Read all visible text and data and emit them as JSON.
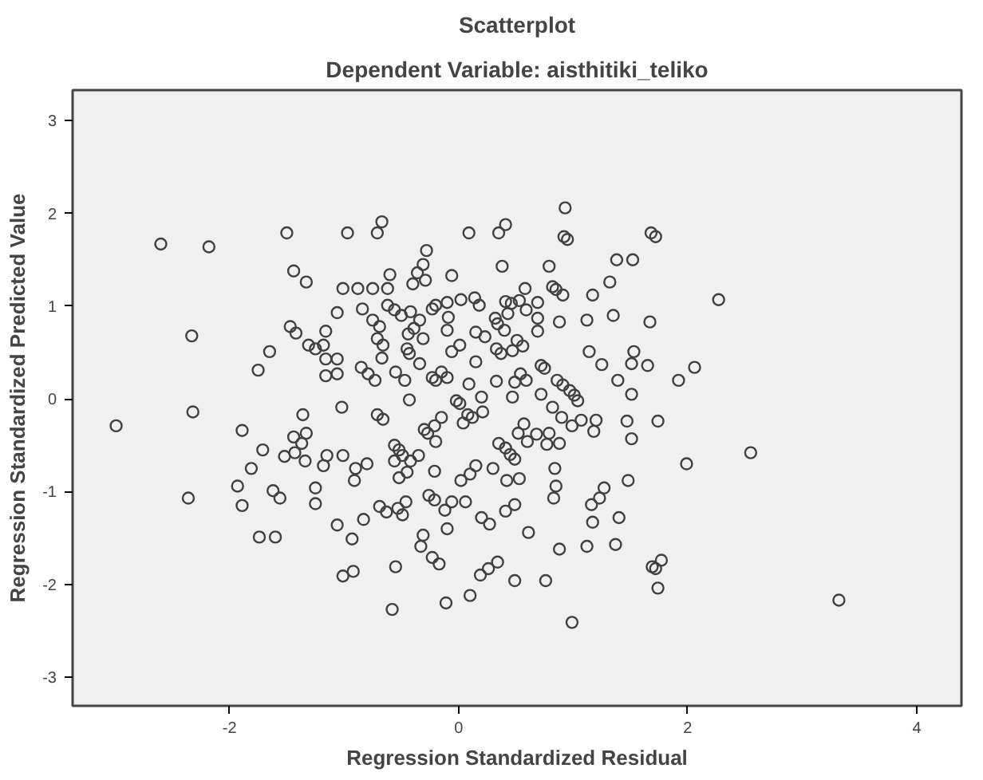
{
  "chart_data": {
    "type": "scatter",
    "title": "Scatterplot",
    "subtitle": "Dependent Variable: aisthitiki_teliko",
    "xlabel": "Regression Standardized Residual",
    "ylabel": "Regression Standardized Predicted Value",
    "marker": "circle",
    "grid": false,
    "xlim": [
      -3.37,
      4.39
    ],
    "ylim": [
      -3.31,
      3.33
    ],
    "xticks": [
      -2,
      0,
      2,
      4
    ],
    "yticks": [
      -3,
      -2,
      -1,
      0,
      1,
      2,
      3
    ],
    "series": [
      {
        "color": "#404040",
        "x": [
          -2.6,
          -2.18,
          -1.5,
          -0.97,
          -0.71,
          -0.67,
          0.09,
          0.35,
          0.41,
          0.93,
          0.92,
          0.95,
          1.68,
          1.72,
          -1.44,
          -1.33,
          -0.28,
          -0.31,
          -0.36,
          -0.29,
          -0.4,
          -0.6,
          -0.62,
          -0.06,
          0.38,
          0.79,
          1.38,
          1.52,
          1.32,
          1.17,
          0.82,
          0.85,
          0.91,
          0.58,
          -1.01,
          -0.88,
          -0.75,
          2.27,
          0.02,
          0.14,
          0.18,
          -0.2,
          -0.23,
          -0.1,
          0.41,
          0.46,
          0.53,
          0.69,
          0.59,
          -1.06,
          -0.84,
          -0.62,
          -0.56,
          -0.5,
          -0.42,
          -0.34,
          -0.09,
          0.43,
          0.32,
          0.69,
          1.35,
          1.12,
          1.67,
          0.88,
          -1.47,
          -1.42,
          -1.16,
          -0.75,
          -0.69,
          -0.71,
          -0.66,
          -2.33,
          -1.65,
          -1.75,
          -1.31,
          -1.25,
          -1.18,
          -1.16,
          -1.06,
          -1.06,
          -1.16,
          -0.67,
          -0.85,
          -0.79,
          -0.73,
          -0.55,
          -0.47,
          -0.44,
          -0.39,
          -0.31,
          -0.45,
          -0.43,
          -0.34,
          -0.1,
          0.01,
          -0.06,
          0.15,
          0.23,
          0.34,
          0.4,
          0.33,
          0.37,
          0.47,
          0.51,
          0.56,
          0.69,
          0.15,
          -0.15,
          -0.23,
          -0.2,
          -0.1,
          0.09,
          0.33,
          0.49,
          0.54,
          0.59,
          0.72,
          0.75,
          0.86,
          0.91,
          0.97,
          1.01,
          1.04,
          1.14,
          1.25,
          1.39,
          1.51,
          1.53,
          1.65,
          2.06,
          1.92,
          1.51,
          0.72,
          0.47,
          0.2,
          -0.43,
          -0.02,
          0.01,
          -1.02,
          -2.99,
          -2.32,
          -1.36,
          -1.89,
          -1.44,
          -1.33,
          -1.37,
          -1.43,
          -1.52,
          -1.34,
          -1.71,
          -1.15,
          -1.01,
          -1.18,
          -1.81,
          -1.93,
          -1.62,
          -1.56,
          -1.89,
          -2.36,
          -1.25,
          -1.25,
          -0.9,
          -0.8,
          -0.91,
          -0.83,
          -1.06,
          -1.74,
          -1.6,
          -0.93,
          -1.01,
          -0.92,
          -0.71,
          -0.66,
          -0.15,
          -0.2,
          -0.21,
          -0.3,
          -0.27,
          -0.35,
          -0.56,
          -0.52,
          -0.49,
          -0.42,
          -0.56,
          -0.45,
          -0.52,
          -0.21,
          0.08,
          0.12,
          0.04,
          0.21,
          0.15,
          0.1,
          0.02,
          0.3,
          0.35,
          0.41,
          0.45,
          0.49,
          0.52,
          0.57,
          0.6,
          0.68,
          0.77,
          0.79,
          0.88,
          0.82,
          0.9,
          0.99,
          1.07,
          1.18,
          1.2,
          1.47,
          1.51,
          1.74,
          2.55,
          1.99,
          1.48,
          1.27,
          1.23,
          1.16,
          1.17,
          1.4,
          0.42,
          0.53,
          0.84,
          0.85,
          0.83,
          0.49,
          0.41,
          0.06,
          -0.06,
          -0.12,
          -0.26,
          -0.21,
          -0.46,
          -0.53,
          -0.69,
          -0.63,
          -0.49,
          0.2,
          0.27,
          -0.1,
          0.61,
          -0.31,
          -0.33,
          -0.23,
          -0.17,
          -0.55,
          0.34,
          0.26,
          0.19,
          0.88,
          1.12,
          1.37,
          1.77,
          1.69,
          1.72,
          1.74,
          0.49,
          0.76,
          0.1,
          -0.11,
          -0.58,
          0.99,
          3.32
        ],
        "values": [
          1.67,
          1.64,
          1.79,
          1.79,
          1.79,
          1.91,
          1.79,
          1.79,
          1.88,
          2.06,
          1.75,
          1.72,
          1.79,
          1.75,
          1.38,
          1.26,
          1.6,
          1.45,
          1.36,
          1.28,
          1.24,
          1.34,
          1.19,
          1.33,
          1.43,
          1.43,
          1.5,
          1.5,
          1.26,
          1.12,
          1.21,
          1.18,
          1.12,
          1.19,
          1.19,
          1.19,
          1.19,
          1.07,
          1.07,
          1.09,
          1.01,
          1.01,
          0.97,
          1.04,
          1.05,
          1.03,
          1.06,
          1.04,
          0.96,
          0.93,
          0.97,
          1.01,
          0.96,
          0.9,
          0.94,
          0.85,
          0.88,
          0.92,
          0.87,
          0.87,
          0.9,
          0.85,
          0.83,
          0.83,
          0.78,
          0.71,
          0.73,
          0.85,
          0.78,
          0.65,
          0.58,
          0.68,
          0.51,
          0.31,
          0.58,
          0.54,
          0.58,
          0.43,
          0.43,
          0.27,
          0.25,
          0.44,
          0.34,
          0.27,
          0.2,
          0.29,
          0.2,
          0.7,
          0.76,
          0.65,
          0.54,
          0.49,
          0.38,
          0.74,
          0.58,
          0.51,
          0.72,
          0.67,
          0.81,
          0.74,
          0.54,
          0.49,
          0.52,
          0.63,
          0.57,
          0.73,
          0.4,
          0.29,
          0.23,
          0.2,
          0.23,
          0.16,
          0.19,
          0.18,
          0.27,
          0.2,
          0.36,
          0.33,
          0.2,
          0.15,
          0.09,
          0.04,
          -0.02,
          0.51,
          0.37,
          0.2,
          0.38,
          0.51,
          0.36,
          0.34,
          0.2,
          0.05,
          0.05,
          0.02,
          0.02,
          -0.01,
          -0.02,
          -0.05,
          -0.09,
          -0.29,
          -0.14,
          -0.17,
          -0.34,
          -0.41,
          -0.37,
          -0.48,
          -0.58,
          -0.62,
          -0.67,
          -0.55,
          -0.61,
          -0.61,
          -0.72,
          -0.75,
          -0.94,
          -0.99,
          -1.07,
          -1.15,
          -1.07,
          -0.96,
          -1.13,
          -0.75,
          -0.7,
          -0.88,
          -1.3,
          -1.36,
          -1.49,
          -1.49,
          -1.51,
          -1.91,
          -1.86,
          -0.17,
          -0.22,
          -0.2,
          -0.46,
          -0.29,
          -0.33,
          -0.37,
          -0.61,
          -0.5,
          -0.55,
          -0.61,
          -0.67,
          -0.67,
          -0.79,
          -0.85,
          -0.78,
          -0.17,
          -0.2,
          -0.26,
          -0.14,
          -0.72,
          -0.81,
          -0.88,
          -0.75,
          -0.48,
          -0.53,
          -0.6,
          -0.65,
          -0.37,
          -0.27,
          -0.46,
          -0.38,
          -0.49,
          -0.37,
          -0.48,
          -0.09,
          -0.2,
          -0.29,
          -0.23,
          -0.35,
          -0.23,
          -0.24,
          -0.43,
          -0.24,
          -0.58,
          -0.7,
          -0.88,
          -0.96,
          -1.07,
          -1.14,
          -1.33,
          -1.28,
          -0.88,
          -0.86,
          -0.75,
          -0.94,
          -1.07,
          -1.14,
          -1.21,
          -1.11,
          -1.11,
          -1.2,
          -1.04,
          -1.09,
          -1.11,
          -1.18,
          -1.16,
          -1.22,
          -1.25,
          -1.28,
          -1.35,
          -1.4,
          -1.44,
          -1.47,
          -1.59,
          -1.71,
          -1.78,
          -1.81,
          -1.76,
          -1.83,
          -1.9,
          -1.62,
          -1.59,
          -1.57,
          -1.74,
          -1.81,
          -1.83,
          -2.04,
          -1.96,
          -1.96,
          -2.12,
          -2.2,
          -2.27,
          -2.41,
          -2.17
        ]
      }
    ]
  }
}
